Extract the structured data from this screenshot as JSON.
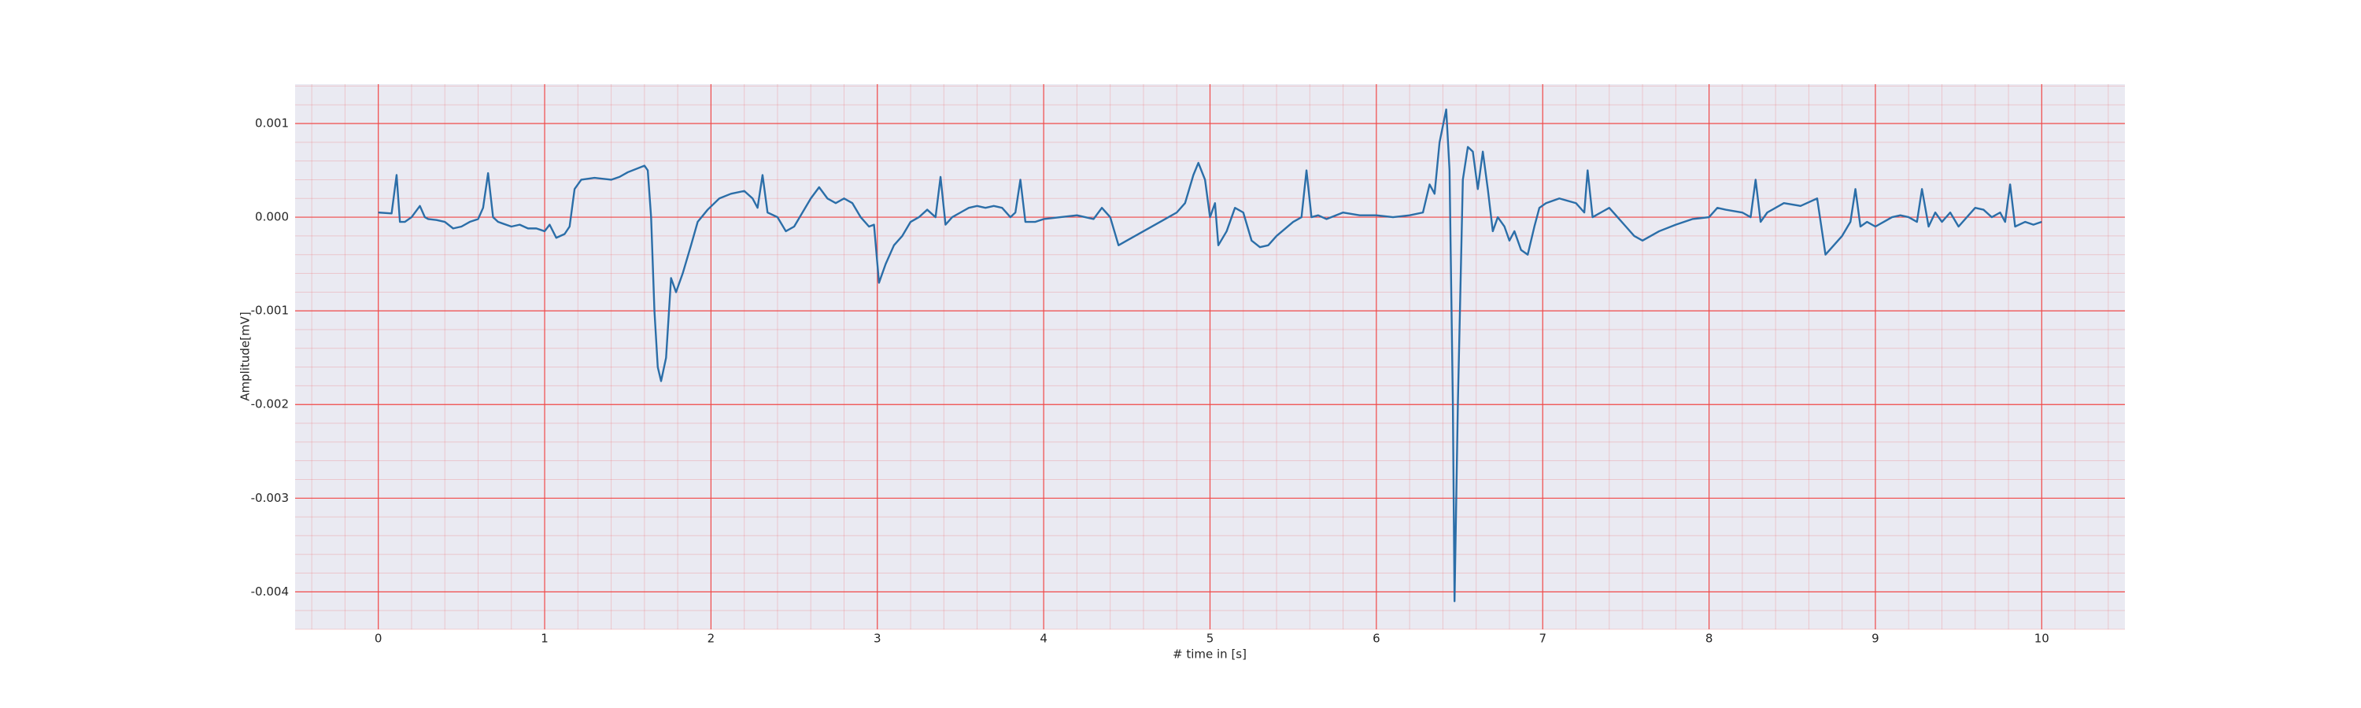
{
  "chart_data": {
    "type": "line",
    "xlabel": "# time in [s]",
    "ylabel": "Amplitude[mV]",
    "x": [
      0,
      0.08,
      0.11,
      0.13,
      0.16,
      0.2,
      0.25,
      0.28,
      0.3,
      0.35,
      0.4,
      0.45,
      0.5,
      0.55,
      0.6,
      0.63,
      0.66,
      0.69,
      0.72,
      0.8,
      0.85,
      0.9,
      0.95,
      1.0,
      1.03,
      1.07,
      1.12,
      1.15,
      1.18,
      1.22,
      1.3,
      1.4,
      1.45,
      1.5,
      1.6,
      1.62,
      1.64,
      1.66,
      1.68,
      1.7,
      1.73,
      1.76,
      1.79,
      1.83,
      1.88,
      1.92,
      1.98,
      2.05,
      2.12,
      2.2,
      2.25,
      2.28,
      2.31,
      2.34,
      2.4,
      2.45,
      2.5,
      2.55,
      2.6,
      2.65,
      2.7,
      2.75,
      2.8,
      2.85,
      2.9,
      2.95,
      2.98,
      3.01,
      3.05,
      3.1,
      3.15,
      3.2,
      3.25,
      3.3,
      3.35,
      3.38,
      3.41,
      3.45,
      3.5,
      3.55,
      3.6,
      3.65,
      3.7,
      3.75,
      3.8,
      3.83,
      3.86,
      3.89,
      3.95,
      4.0,
      4.1,
      4.2,
      4.3,
      4.35,
      4.4,
      4.45,
      4.5,
      4.6,
      4.7,
      4.8,
      4.85,
      4.9,
      4.93,
      4.97,
      5.0,
      5.03,
      5.05,
      5.1,
      5.15,
      5.2,
      5.25,
      5.3,
      5.35,
      5.4,
      5.5,
      5.55,
      5.58,
      5.61,
      5.65,
      5.7,
      5.8,
      5.9,
      6.0,
      6.1,
      6.2,
      6.28,
      6.32,
      6.35,
      6.38,
      6.42,
      6.44,
      6.46,
      6.47,
      6.49,
      6.52,
      6.55,
      6.58,
      6.61,
      6.64,
      6.67,
      6.7,
      6.73,
      6.77,
      6.8,
      6.83,
      6.87,
      6.91,
      6.95,
      6.98,
      7.02,
      7.1,
      7.2,
      7.25,
      7.27,
      7.3,
      7.35,
      7.4,
      7.45,
      7.5,
      7.55,
      7.6,
      7.7,
      7.8,
      7.9,
      8.0,
      8.05,
      8.1,
      8.2,
      8.25,
      8.28,
      8.31,
      8.35,
      8.45,
      8.55,
      8.65,
      8.7,
      8.75,
      8.8,
      8.85,
      8.88,
      8.91,
      8.95,
      9.0,
      9.05,
      9.1,
      9.15,
      9.2,
      9.25,
      9.28,
      9.32,
      9.36,
      9.4,
      9.45,
      9.5,
      9.55,
      9.6,
      9.65,
      9.7,
      9.75,
      9.78,
      9.81,
      9.84,
      9.9,
      9.95,
      10.0
    ],
    "values": [
      5e-05,
      4e-05,
      0.00045,
      -5e-05,
      -5e-05,
      0,
      0.00012,
      0,
      -2e-05,
      -3e-05,
      -5e-05,
      -0.00012,
      -0.0001,
      -5e-05,
      -2e-05,
      0.0001,
      0.00047,
      0,
      -5e-05,
      -0.0001,
      -8e-05,
      -0.00012,
      -0.00012,
      -0.00015,
      -8e-05,
      -0.00022,
      -0.00018,
      -0.0001,
      0.0003,
      0.0004,
      0.00042,
      0.0004,
      0.00043,
      0.00048,
      0.00055,
      0.0005,
      0,
      -0.001,
      -0.0016,
      -0.00175,
      -0.0015,
      -0.00065,
      -0.0008,
      -0.0006,
      -0.0003,
      -5e-05,
      8e-05,
      0.0002,
      0.00025,
      0.00028,
      0.0002,
      0.0001,
      0.00045,
      5e-05,
      0,
      -0.00015,
      -0.0001,
      5e-05,
      0.0002,
      0.00032,
      0.0002,
      0.00015,
      0.0002,
      0.00015,
      0,
      -0.0001,
      -8e-05,
      -0.0007,
      -0.0005,
      -0.0003,
      -0.0002,
      -5e-05,
      0,
      8e-05,
      0,
      0.00043,
      -8e-05,
      0,
      5e-05,
      0.0001,
      0.00012,
      0.0001,
      0.00012,
      0.0001,
      0,
      5e-05,
      0.0004,
      -5e-05,
      -5e-05,
      -2e-05,
      0,
      2e-05,
      -2e-05,
      0.0001,
      0,
      -0.0003,
      -0.00025,
      -0.00015,
      -5e-05,
      5e-05,
      0.00015,
      0.00045,
      0.00058,
      0.0004,
      0,
      0.00015,
      -0.0003,
      -0.00015,
      0.0001,
      5e-05,
      -0.00025,
      -0.00032,
      -0.0003,
      -0.0002,
      -5e-05,
      0,
      0.0005,
      0,
      2e-05,
      -2e-05,
      5e-05,
      2e-05,
      2e-05,
      0,
      2e-05,
      5e-05,
      0.00035,
      0.00025,
      0.0008,
      0.00115,
      0.0005,
      -0.002,
      -0.0041,
      -0.002,
      0.0004,
      0.00075,
      0.0007,
      0.0003,
      0.0007,
      0.0003,
      -0.00015,
      0,
      -0.0001,
      -0.00025,
      -0.00015,
      -0.00035,
      -0.0004,
      -0.0001,
      0.0001,
      0.00015,
      0.0002,
      0.00015,
      5e-05,
      0.0005,
      0,
      5e-05,
      0.0001,
      0,
      -0.0001,
      -0.0002,
      -0.00025,
      -0.00015,
      -8e-05,
      -2e-05,
      0,
      0.0001,
      8e-05,
      5e-05,
      0,
      0.0004,
      -5e-05,
      5e-05,
      0.00015,
      0.00012,
      0.0002,
      -0.0004,
      -0.0003,
      -0.0002,
      -5e-05,
      0.0003,
      -0.0001,
      -5e-05,
      -0.0001,
      -5e-05,
      0,
      2e-05,
      0,
      -5e-05,
      0.0003,
      -0.0001,
      5e-05,
      -5e-05,
      5e-05,
      -0.0001,
      0,
      0.0001,
      8e-05,
      0,
      5e-05,
      -5e-05,
      0.00035,
      -0.0001,
      -5e-05,
      -8e-05,
      -5e-05
    ],
    "color": "#2b6ea8",
    "xlim": [
      -0.5,
      10.5
    ],
    "ylim": [
      -0.0044,
      0.00142
    ],
    "xticks": [
      0,
      1,
      2,
      3,
      4,
      5,
      6,
      7,
      8,
      9,
      10
    ],
    "yticks": [
      0.001,
      {
        "value": 0,
        "label": "0.000"
      },
      -0.001,
      -0.002,
      -0.003,
      -0.004
    ],
    "grid": true,
    "minor_grid": true,
    "grid_color": "#f04a4a",
    "background": "#eaeaf2"
  }
}
